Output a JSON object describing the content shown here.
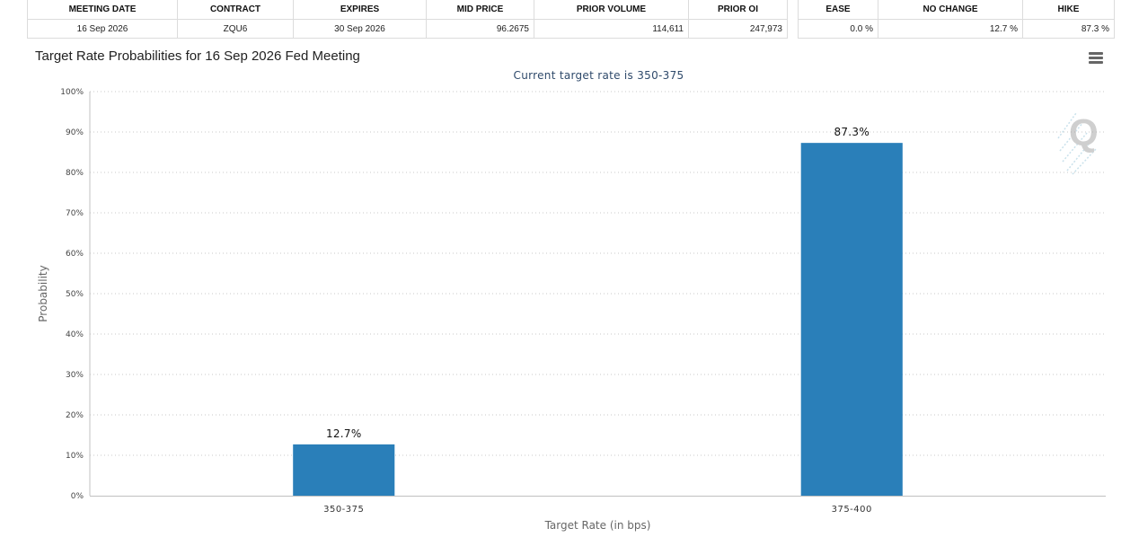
{
  "futures_table": {
    "headers": [
      "MEETING DATE",
      "CONTRACT",
      "EXPIRES",
      "MID PRICE",
      "PRIOR VOLUME",
      "PRIOR OI"
    ],
    "row": {
      "meeting_date": "16 Sep 2026",
      "contract": "ZQU6",
      "expires": "30 Sep 2026",
      "mid_price": "96.2675",
      "prior_volume": "114,611",
      "prior_oi": "247,973"
    }
  },
  "probability_table": {
    "headers": [
      "EASE",
      "NO CHANGE",
      "HIKE"
    ],
    "row": {
      "ease": "0.0 %",
      "no_change": "12.7 %",
      "hike": "87.3 %"
    }
  },
  "chart": {
    "title": "Target Rate Probabilities for 16 Sep 2026 Fed Meeting",
    "subtitle": "Current target rate is 350-375",
    "menu_icon": "hamburger-menu-icon",
    "watermark_icon": "q-logo-icon"
  },
  "chart_data": {
    "type": "bar",
    "title": "Target Rate Probabilities for 16 Sep 2026 Fed Meeting",
    "subtitle": "Current target rate is 350-375",
    "categories": [
      "350-375",
      "375-400"
    ],
    "series": [
      {
        "values": [
          12.7,
          87.3
        ]
      }
    ],
    "data_labels": [
      "12.7%",
      "87.3%"
    ],
    "xlabel": "Target Rate (in bps)",
    "ylabel": "Probability",
    "ylim": [
      0,
      100
    ],
    "yticks": [
      "0%",
      "10%",
      "20%",
      "30%",
      "40%",
      "50%",
      "60%",
      "70%",
      "80%",
      "90%",
      "100%"
    ],
    "grid": true,
    "bar_color": "#2a7fb9",
    "grid_color": "#c8c8c8"
  }
}
